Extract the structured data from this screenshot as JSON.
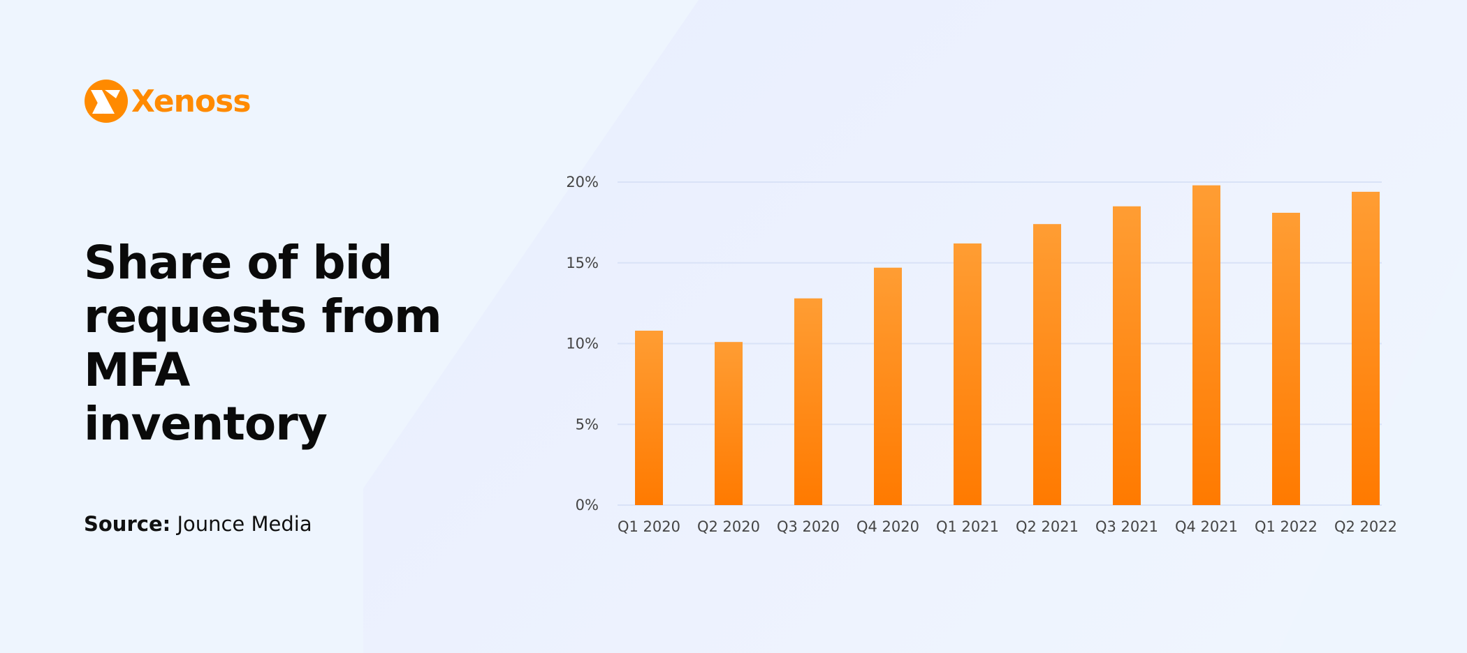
{
  "brand": {
    "name": "Xenoss",
    "color": "#ff8a00",
    "icon": "xenoss-logo-icon"
  },
  "title": "Share of bid requests from MFA inventory",
  "source": {
    "label": "Source:",
    "value": "Jounce Media"
  },
  "chart_data": {
    "type": "bar",
    "title": "",
    "xlabel": "",
    "ylabel": "",
    "categories": [
      "Q1 2020",
      "Q2 2020",
      "Q3 2020",
      "Q4 2020",
      "Q1 2021",
      "Q2 2021",
      "Q3 2021",
      "Q4 2021",
      "Q1 2022",
      "Q2 2022"
    ],
    "values": [
      10.8,
      10.1,
      12.8,
      14.7,
      16.2,
      17.4,
      18.5,
      19.8,
      18.1,
      19.4
    ],
    "unit": "%",
    "ylim": [
      0,
      20
    ],
    "yticks": [
      0,
      5,
      10,
      15,
      20
    ],
    "ytick_labels": [
      "0%",
      "5%",
      "10%",
      "15%",
      "20%"
    ],
    "grid": true,
    "bar_color_top": "#ff9d33",
    "bar_color_bottom": "#ff7a00",
    "grid_color": "#d9e2f7"
  }
}
